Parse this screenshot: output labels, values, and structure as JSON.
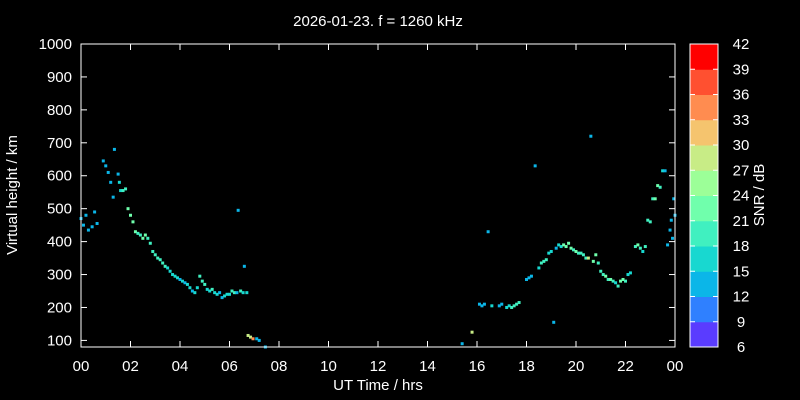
{
  "chart_data": {
    "type": "scatter",
    "title": "2026-01-23. f = 1260 kHz",
    "xlabel": "UT Time / hrs",
    "ylabel": "Virtual height / km",
    "xlim": [
      0,
      24
    ],
    "ylim": [
      80,
      1000
    ],
    "xticks": [
      "00",
      "02",
      "04",
      "06",
      "08",
      "10",
      "12",
      "14",
      "16",
      "18",
      "20",
      "22",
      "00"
    ],
    "yticks": [
      100,
      200,
      300,
      400,
      500,
      600,
      700,
      800,
      900,
      1000
    ],
    "colorbar": {
      "label": "SNR / dB",
      "min": 6,
      "max": 42,
      "ticks": [
        6,
        9,
        12,
        15,
        18,
        21,
        24,
        27,
        30,
        33,
        36,
        39,
        42
      ],
      "colors": [
        "#7f00ff",
        "#5a3cff",
        "#2f80ff",
        "#0bb6e8",
        "#18d8d0",
        "#40f0c0",
        "#70ffac",
        "#9cff98",
        "#c8ec86",
        "#f5c46e",
        "#ff8c50",
        "#ff5030",
        "#ff0000"
      ]
    },
    "grid": false,
    "points": [
      [
        0.0,
        470,
        12
      ],
      [
        0.1,
        450,
        12
      ],
      [
        0.2,
        480,
        12
      ],
      [
        0.3,
        435,
        12
      ],
      [
        0.45,
        445,
        12
      ],
      [
        0.55,
        490,
        12
      ],
      [
        0.65,
        455,
        12
      ],
      [
        0.9,
        645,
        12
      ],
      [
        1.0,
        630,
        12
      ],
      [
        1.1,
        610,
        12
      ],
      [
        1.2,
        580,
        12
      ],
      [
        1.3,
        535,
        12
      ],
      [
        1.35,
        680,
        12
      ],
      [
        1.5,
        605,
        12
      ],
      [
        1.55,
        580,
        15
      ],
      [
        1.6,
        555,
        15
      ],
      [
        1.7,
        555,
        18
      ],
      [
        1.8,
        560,
        18
      ],
      [
        1.9,
        500,
        21
      ],
      [
        2.0,
        480,
        21
      ],
      [
        2.1,
        460,
        21
      ],
      [
        2.2,
        430,
        21
      ],
      [
        2.3,
        425,
        18
      ],
      [
        2.4,
        420,
        18
      ],
      [
        2.5,
        410,
        21
      ],
      [
        2.6,
        420,
        21
      ],
      [
        2.7,
        410,
        18
      ],
      [
        2.8,
        395,
        18
      ],
      [
        2.9,
        370,
        18
      ],
      [
        3.0,
        360,
        18
      ],
      [
        3.1,
        350,
        18
      ],
      [
        3.2,
        345,
        18
      ],
      [
        3.3,
        335,
        18
      ],
      [
        3.4,
        325,
        18
      ],
      [
        3.5,
        320,
        15
      ],
      [
        3.6,
        310,
        15
      ],
      [
        3.7,
        300,
        15
      ],
      [
        3.8,
        295,
        15
      ],
      [
        3.9,
        290,
        15
      ],
      [
        4.0,
        285,
        12
      ],
      [
        4.1,
        280,
        15
      ],
      [
        4.2,
        275,
        12
      ],
      [
        4.3,
        270,
        15
      ],
      [
        4.4,
        260,
        15
      ],
      [
        4.5,
        250,
        12
      ],
      [
        4.6,
        245,
        15
      ],
      [
        4.7,
        260,
        15
      ],
      [
        4.8,
        295,
        18
      ],
      [
        4.9,
        280,
        18
      ],
      [
        5.0,
        270,
        18
      ],
      [
        5.1,
        255,
        15
      ],
      [
        5.2,
        250,
        15
      ],
      [
        5.3,
        255,
        18
      ],
      [
        5.4,
        245,
        15
      ],
      [
        5.5,
        240,
        15
      ],
      [
        5.6,
        245,
        12
      ],
      [
        5.7,
        230,
        12
      ],
      [
        5.8,
        235,
        15
      ],
      [
        5.9,
        240,
        15
      ],
      [
        6.0,
        240,
        15
      ],
      [
        6.1,
        250,
        18
      ],
      [
        6.2,
        245,
        18
      ],
      [
        6.3,
        245,
        12
      ],
      [
        6.35,
        495,
        12
      ],
      [
        6.45,
        250,
        18
      ],
      [
        6.55,
        245,
        15
      ],
      [
        6.6,
        325,
        12
      ],
      [
        6.7,
        245,
        15
      ],
      [
        6.75,
        115,
        27
      ],
      [
        6.85,
        110,
        27
      ],
      [
        6.95,
        105,
        33
      ],
      [
        7.1,
        105,
        12
      ],
      [
        7.2,
        100,
        12
      ],
      [
        7.45,
        80,
        12
      ],
      [
        15.4,
        90,
        12
      ],
      [
        15.8,
        125,
        27
      ],
      [
        16.1,
        210,
        12
      ],
      [
        16.2,
        205,
        12
      ],
      [
        16.3,
        210,
        12
      ],
      [
        16.45,
        430,
        12
      ],
      [
        16.6,
        205,
        15
      ],
      [
        16.9,
        205,
        12
      ],
      [
        17.0,
        210,
        12
      ],
      [
        17.2,
        200,
        15
      ],
      [
        17.3,
        205,
        15
      ],
      [
        17.4,
        200,
        18
      ],
      [
        17.5,
        205,
        18
      ],
      [
        17.6,
        210,
        18
      ],
      [
        17.7,
        215,
        18
      ],
      [
        18.0,
        285,
        12
      ],
      [
        18.1,
        290,
        12
      ],
      [
        18.2,
        295,
        12
      ],
      [
        18.35,
        630,
        12
      ],
      [
        18.5,
        320,
        15
      ],
      [
        18.6,
        335,
        18
      ],
      [
        18.7,
        340,
        18
      ],
      [
        18.8,
        345,
        18
      ],
      [
        18.9,
        365,
        15
      ],
      [
        19.0,
        370,
        15
      ],
      [
        19.1,
        155,
        12
      ],
      [
        19.2,
        380,
        12
      ],
      [
        19.3,
        390,
        15
      ],
      [
        19.4,
        385,
        15
      ],
      [
        19.5,
        390,
        21
      ],
      [
        19.6,
        385,
        21
      ],
      [
        19.7,
        395,
        21
      ],
      [
        19.8,
        380,
        21
      ],
      [
        19.9,
        375,
        18
      ],
      [
        20.0,
        370,
        21
      ],
      [
        20.1,
        365,
        18
      ],
      [
        20.2,
        365,
        18
      ],
      [
        20.3,
        360,
        18
      ],
      [
        20.4,
        350,
        18
      ],
      [
        20.5,
        350,
        27
      ],
      [
        20.6,
        720,
        12
      ],
      [
        20.7,
        340,
        21
      ],
      [
        20.8,
        360,
        21
      ],
      [
        20.9,
        335,
        18
      ],
      [
        21.0,
        310,
        18
      ],
      [
        21.1,
        300,
        18
      ],
      [
        21.2,
        295,
        21
      ],
      [
        21.3,
        285,
        18
      ],
      [
        21.4,
        285,
        21
      ],
      [
        21.5,
        280,
        18
      ],
      [
        21.6,
        275,
        15
      ],
      [
        21.7,
        265,
        18
      ],
      [
        21.8,
        280,
        21
      ],
      [
        21.9,
        285,
        21
      ],
      [
        22.0,
        280,
        18
      ],
      [
        22.1,
        300,
        15
      ],
      [
        22.2,
        305,
        15
      ],
      [
        22.4,
        385,
        18
      ],
      [
        22.5,
        390,
        21
      ],
      [
        22.6,
        380,
        18
      ],
      [
        22.7,
        370,
        15
      ],
      [
        22.8,
        385,
        18
      ],
      [
        22.9,
        465,
        18
      ],
      [
        23.0,
        460,
        18
      ],
      [
        23.1,
        530,
        18
      ],
      [
        23.2,
        530,
        21
      ],
      [
        23.3,
        570,
        21
      ],
      [
        23.4,
        565,
        18
      ],
      [
        23.5,
        615,
        15
      ],
      [
        23.6,
        615,
        12
      ],
      [
        23.7,
        390,
        12
      ],
      [
        23.8,
        435,
        12
      ],
      [
        23.85,
        465,
        12
      ],
      [
        23.9,
        410,
        12
      ],
      [
        23.95,
        530,
        12
      ],
      [
        24.0,
        480,
        12
      ]
    ]
  }
}
